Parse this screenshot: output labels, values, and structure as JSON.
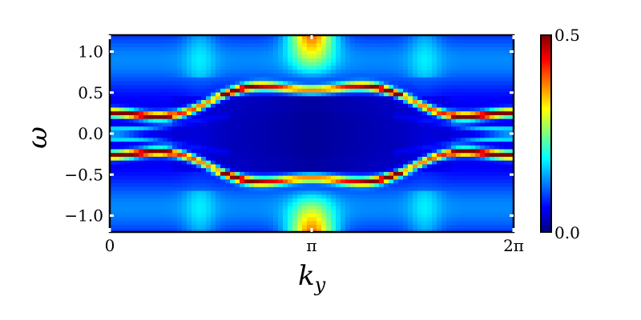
{
  "chart_data": {
    "type": "heatmap",
    "title": "",
    "xlabel": "k",
    "xlabel_subscript": "y",
    "ylabel": "ω",
    "xlim": [
      0,
      6.2832
    ],
    "ylim": [
      -1.2,
      1.2
    ],
    "x_ticks": [
      {
        "value": 0,
        "label": "0"
      },
      {
        "value": 3.1416,
        "label": "π"
      },
      {
        "value": 6.2832,
        "label": "2π"
      }
    ],
    "y_ticks": [
      {
        "value": 1.0,
        "label": "1.0"
      },
      {
        "value": 0.5,
        "label": "0.5"
      },
      {
        "value": 0.0,
        "label": "0.0"
      },
      {
        "value": -0.5,
        "label": "−0.5"
      },
      {
        "value": -1.0,
        "label": "−1.0"
      }
    ],
    "colorbar": {
      "min": 0.0,
      "max": 0.5,
      "min_label": "0.0",
      "max_label": "0.5",
      "colormap": "jet"
    },
    "grid": false,
    "band_description": {
      "outer_band_omega_at_0": 0.2,
      "outer_band_omega_at_pi": 0.6,
      "inner_band_omega_at_0": 0.05
    }
  }
}
